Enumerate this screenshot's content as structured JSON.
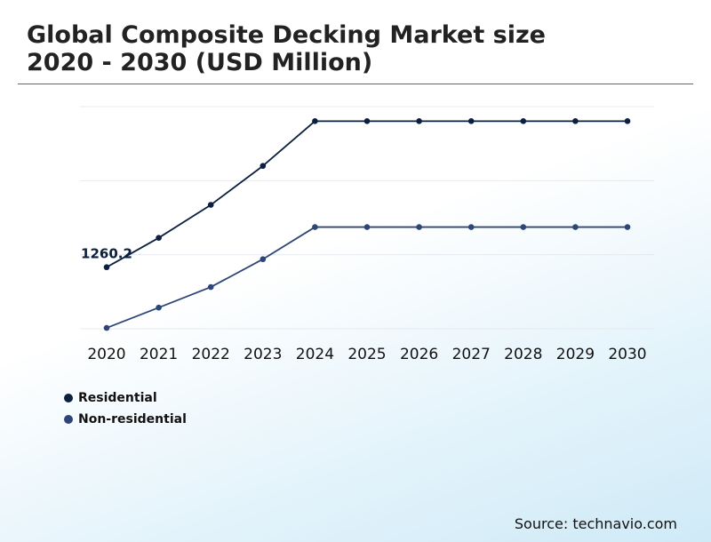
{
  "header": {
    "title_line1": "Global Composite Decking Market size",
    "title_line2": "2020 - 2030 (USD Million)"
  },
  "footer": {
    "source": "Source: technavio.com"
  },
  "colors": {
    "residential": "#0b1f3f",
    "non_residential": "#2e4677",
    "grid": "#e6e9ee"
  },
  "chart_data": {
    "type": "line",
    "title": "Global Composite Decking Market size 2020 - 2030 (USD Million)",
    "xlabel": "",
    "ylabel": "",
    "categories": [
      "2020",
      "2021",
      "2022",
      "2023",
      "2024",
      "2025",
      "2026",
      "2027",
      "2028",
      "2029",
      "2030"
    ],
    "ylim": [
      900,
      2200
    ],
    "grid": true,
    "legend_position": "bottom-left",
    "series": [
      {
        "name": "Residential",
        "color": "#0b1f3f",
        "values": [
          1260.2,
          1432,
          1625,
          1853,
          2115,
          2115,
          2115,
          2115,
          2115,
          2115,
          2115
        ]
      },
      {
        "name": "Non-residential",
        "color": "#2e4677",
        "values": [
          905,
          1024,
          1144,
          1307,
          1495,
          1495,
          1495,
          1495,
          1495,
          1495,
          1495
        ]
      }
    ],
    "annotations": [
      {
        "text": "1260.2",
        "series": 0,
        "index": 0
      }
    ]
  }
}
